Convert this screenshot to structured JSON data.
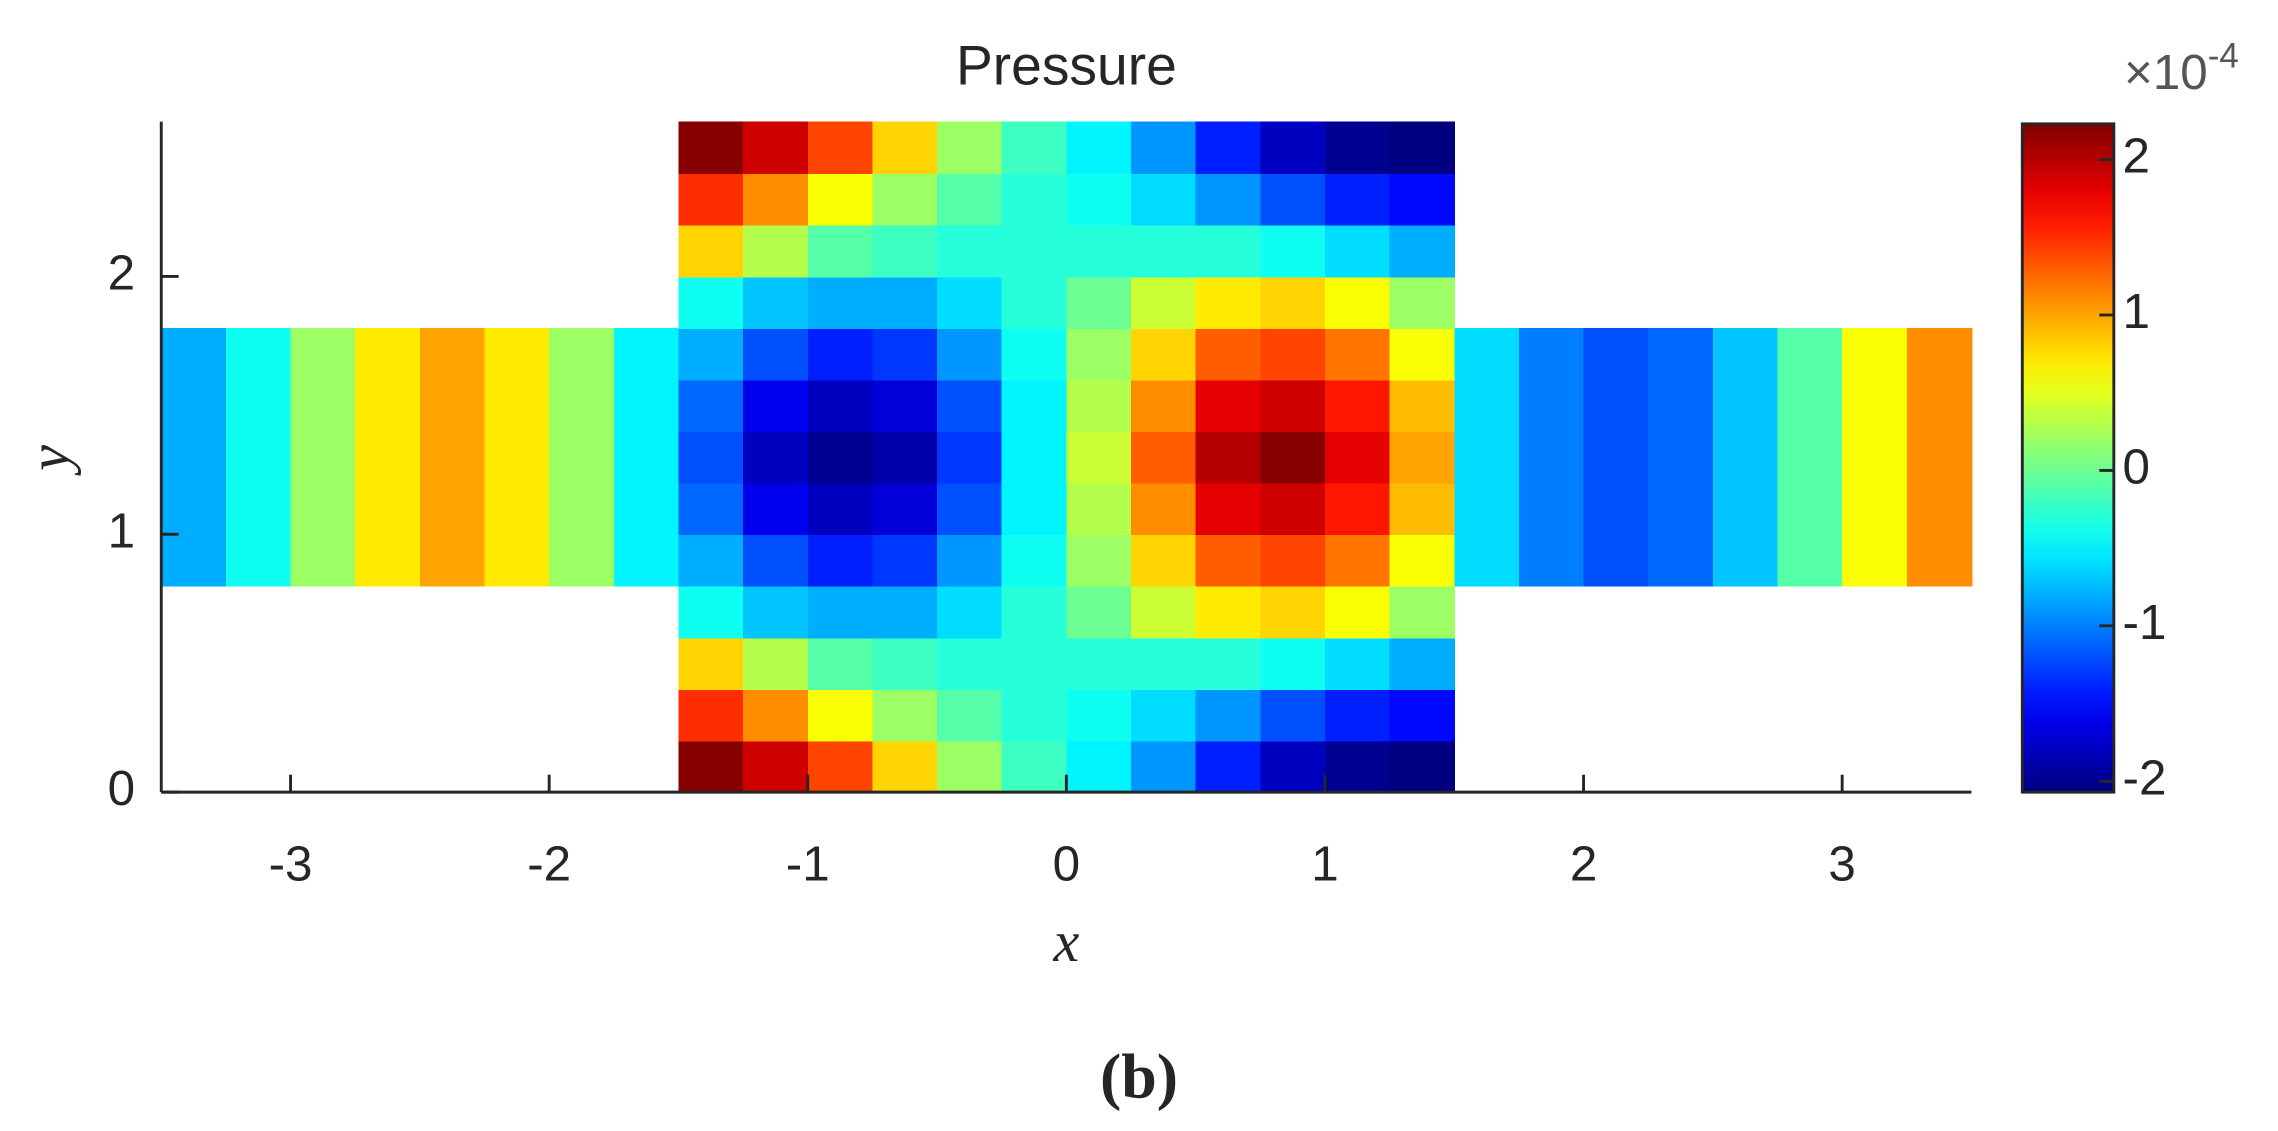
{
  "chart_data": {
    "type": "heatmap",
    "title": "Pressure",
    "xlabel": "x",
    "ylabel": "y",
    "caption": "(b)",
    "colormap": "jet",
    "clim": [
      -2.07,
      2.23
    ],
    "colorbar_ticks": [
      -2,
      -1,
      0,
      1,
      2
    ],
    "colorbar_multiplier": "×10",
    "colorbar_exponent": "-4",
    "xlim": [
      -3.5,
      3.5
    ],
    "ylim": [
      0,
      2.6
    ],
    "xticks": [
      -3,
      -2,
      -1,
      0,
      1,
      2,
      3
    ],
    "yticks": [
      0,
      1,
      2
    ],
    "x": [
      -3.375,
      -3.125,
      -2.875,
      -2.625,
      -2.375,
      -2.125,
      -1.875,
      -1.625,
      -1.375,
      -1.125,
      -0.875,
      -0.625,
      -0.375,
      -0.125,
      0.125,
      0.375,
      0.625,
      0.875,
      1.125,
      1.375,
      1.625,
      1.875,
      2.125,
      2.375,
      2.625,
      2.875,
      3.125,
      3.375
    ],
    "y": [
      0.1,
      0.3,
      0.5,
      0.7,
      0.9,
      1.1,
      1.3,
      1.5,
      1.7,
      1.9,
      2.1,
      2.3,
      2.5
    ],
    "z": [
      [
        null,
        null,
        null,
        null,
        null,
        null,
        null,
        null,
        2.2,
        1.9,
        1.4,
        0.8,
        0.2,
        -0.2,
        -0.5,
        -0.9,
        -1.4,
        -1.8,
        -2.0,
        -2.1,
        null,
        null,
        null,
        null,
        null,
        null,
        null,
        null
      ],
      [
        null,
        null,
        null,
        null,
        null,
        null,
        null,
        null,
        1.5,
        1.1,
        0.6,
        0.2,
        -0.1,
        -0.3,
        -0.4,
        -0.6,
        -0.9,
        -1.2,
        -1.4,
        -1.5,
        null,
        null,
        null,
        null,
        null,
        null,
        null,
        null
      ],
      [
        null,
        null,
        null,
        null,
        null,
        null,
        null,
        null,
        0.8,
        0.3,
        -0.1,
        -0.2,
        -0.3,
        -0.3,
        -0.3,
        -0.3,
        -0.3,
        -0.4,
        -0.6,
        -0.8,
        null,
        null,
        null,
        null,
        null,
        null,
        null,
        null
      ],
      [
        null,
        null,
        null,
        null,
        null,
        null,
        null,
        null,
        -0.4,
        -0.7,
        -0.8,
        -0.8,
        -0.6,
        -0.3,
        0,
        0.4,
        0.7,
        0.8,
        0.6,
        0.2,
        null,
        null,
        null,
        null,
        null,
        null,
        null,
        null
      ],
      [
        -0.8,
        -0.4,
        0.2,
        0.7,
        1.0,
        0.7,
        0.2,
        -0.5,
        -0.8,
        -1.2,
        -1.4,
        -1.3,
        -0.9,
        -0.4,
        0.2,
        0.8,
        1.3,
        1.4,
        1.2,
        0.6,
        -0.6,
        -1.0,
        -1.2,
        -1.1,
        -0.7,
        -0.1,
        0.6,
        1.1
      ],
      [
        -0.8,
        -0.4,
        0.2,
        0.7,
        1.0,
        0.7,
        0.2,
        -0.5,
        -1.1,
        -1.6,
        -1.8,
        -1.7,
        -1.2,
        -0.5,
        0.3,
        1.1,
        1.8,
        1.9,
        1.6,
        0.9,
        -0.6,
        -1.0,
        -1.2,
        -1.1,
        -0.7,
        -0.1,
        0.6,
        1.1
      ],
      [
        -0.8,
        -0.4,
        0.2,
        0.7,
        1.0,
        0.7,
        0.2,
        -0.5,
        -1.2,
        -1.8,
        -2.0,
        -1.9,
        -1.3,
        -0.5,
        0.4,
        1.3,
        2.0,
        2.2,
        1.8,
        1.0,
        -0.6,
        -1.0,
        -1.2,
        -1.1,
        -0.7,
        -0.1,
        0.6,
        1.1
      ],
      [
        -0.8,
        -0.4,
        0.2,
        0.7,
        1.0,
        0.7,
        0.2,
        -0.5,
        -1.1,
        -1.6,
        -1.8,
        -1.7,
        -1.2,
        -0.5,
        0.3,
        1.1,
        1.8,
        1.9,
        1.6,
        0.9,
        -0.6,
        -1.0,
        -1.2,
        -1.1,
        -0.7,
        -0.1,
        0.6,
        1.1
      ],
      [
        -0.8,
        -0.4,
        0.2,
        0.7,
        1.0,
        0.7,
        0.2,
        -0.5,
        -0.8,
        -1.2,
        -1.4,
        -1.3,
        -0.9,
        -0.4,
        0.2,
        0.8,
        1.3,
        1.4,
        1.2,
        0.6,
        -0.6,
        -1.0,
        -1.2,
        -1.1,
        -0.7,
        -0.1,
        0.6,
        1.1
      ],
      [
        null,
        null,
        null,
        null,
        null,
        null,
        null,
        null,
        -0.4,
        -0.7,
        -0.8,
        -0.8,
        -0.6,
        -0.3,
        0,
        0.4,
        0.7,
        0.8,
        0.6,
        0.2,
        null,
        null,
        null,
        null,
        null,
        null,
        null,
        null
      ],
      [
        null,
        null,
        null,
        null,
        null,
        null,
        null,
        null,
        0.8,
        0.3,
        -0.1,
        -0.2,
        -0.3,
        -0.3,
        -0.3,
        -0.3,
        -0.3,
        -0.4,
        -0.6,
        -0.8,
        null,
        null,
        null,
        null,
        null,
        null,
        null,
        null
      ],
      [
        null,
        null,
        null,
        null,
        null,
        null,
        null,
        null,
        1.5,
        1.1,
        0.6,
        0.2,
        -0.1,
        -0.3,
        -0.4,
        -0.6,
        -0.9,
        -1.2,
        -1.4,
        -1.5,
        null,
        null,
        null,
        null,
        null,
        null,
        null,
        null
      ],
      [
        null,
        null,
        null,
        null,
        null,
        null,
        null,
        null,
        2.2,
        1.9,
        1.4,
        0.8,
        0.2,
        -0.2,
        -0.5,
        -0.9,
        -1.4,
        -1.8,
        -2.0,
        -2.1,
        null,
        null,
        null,
        null,
        null,
        null,
        null,
        null
      ]
    ]
  }
}
